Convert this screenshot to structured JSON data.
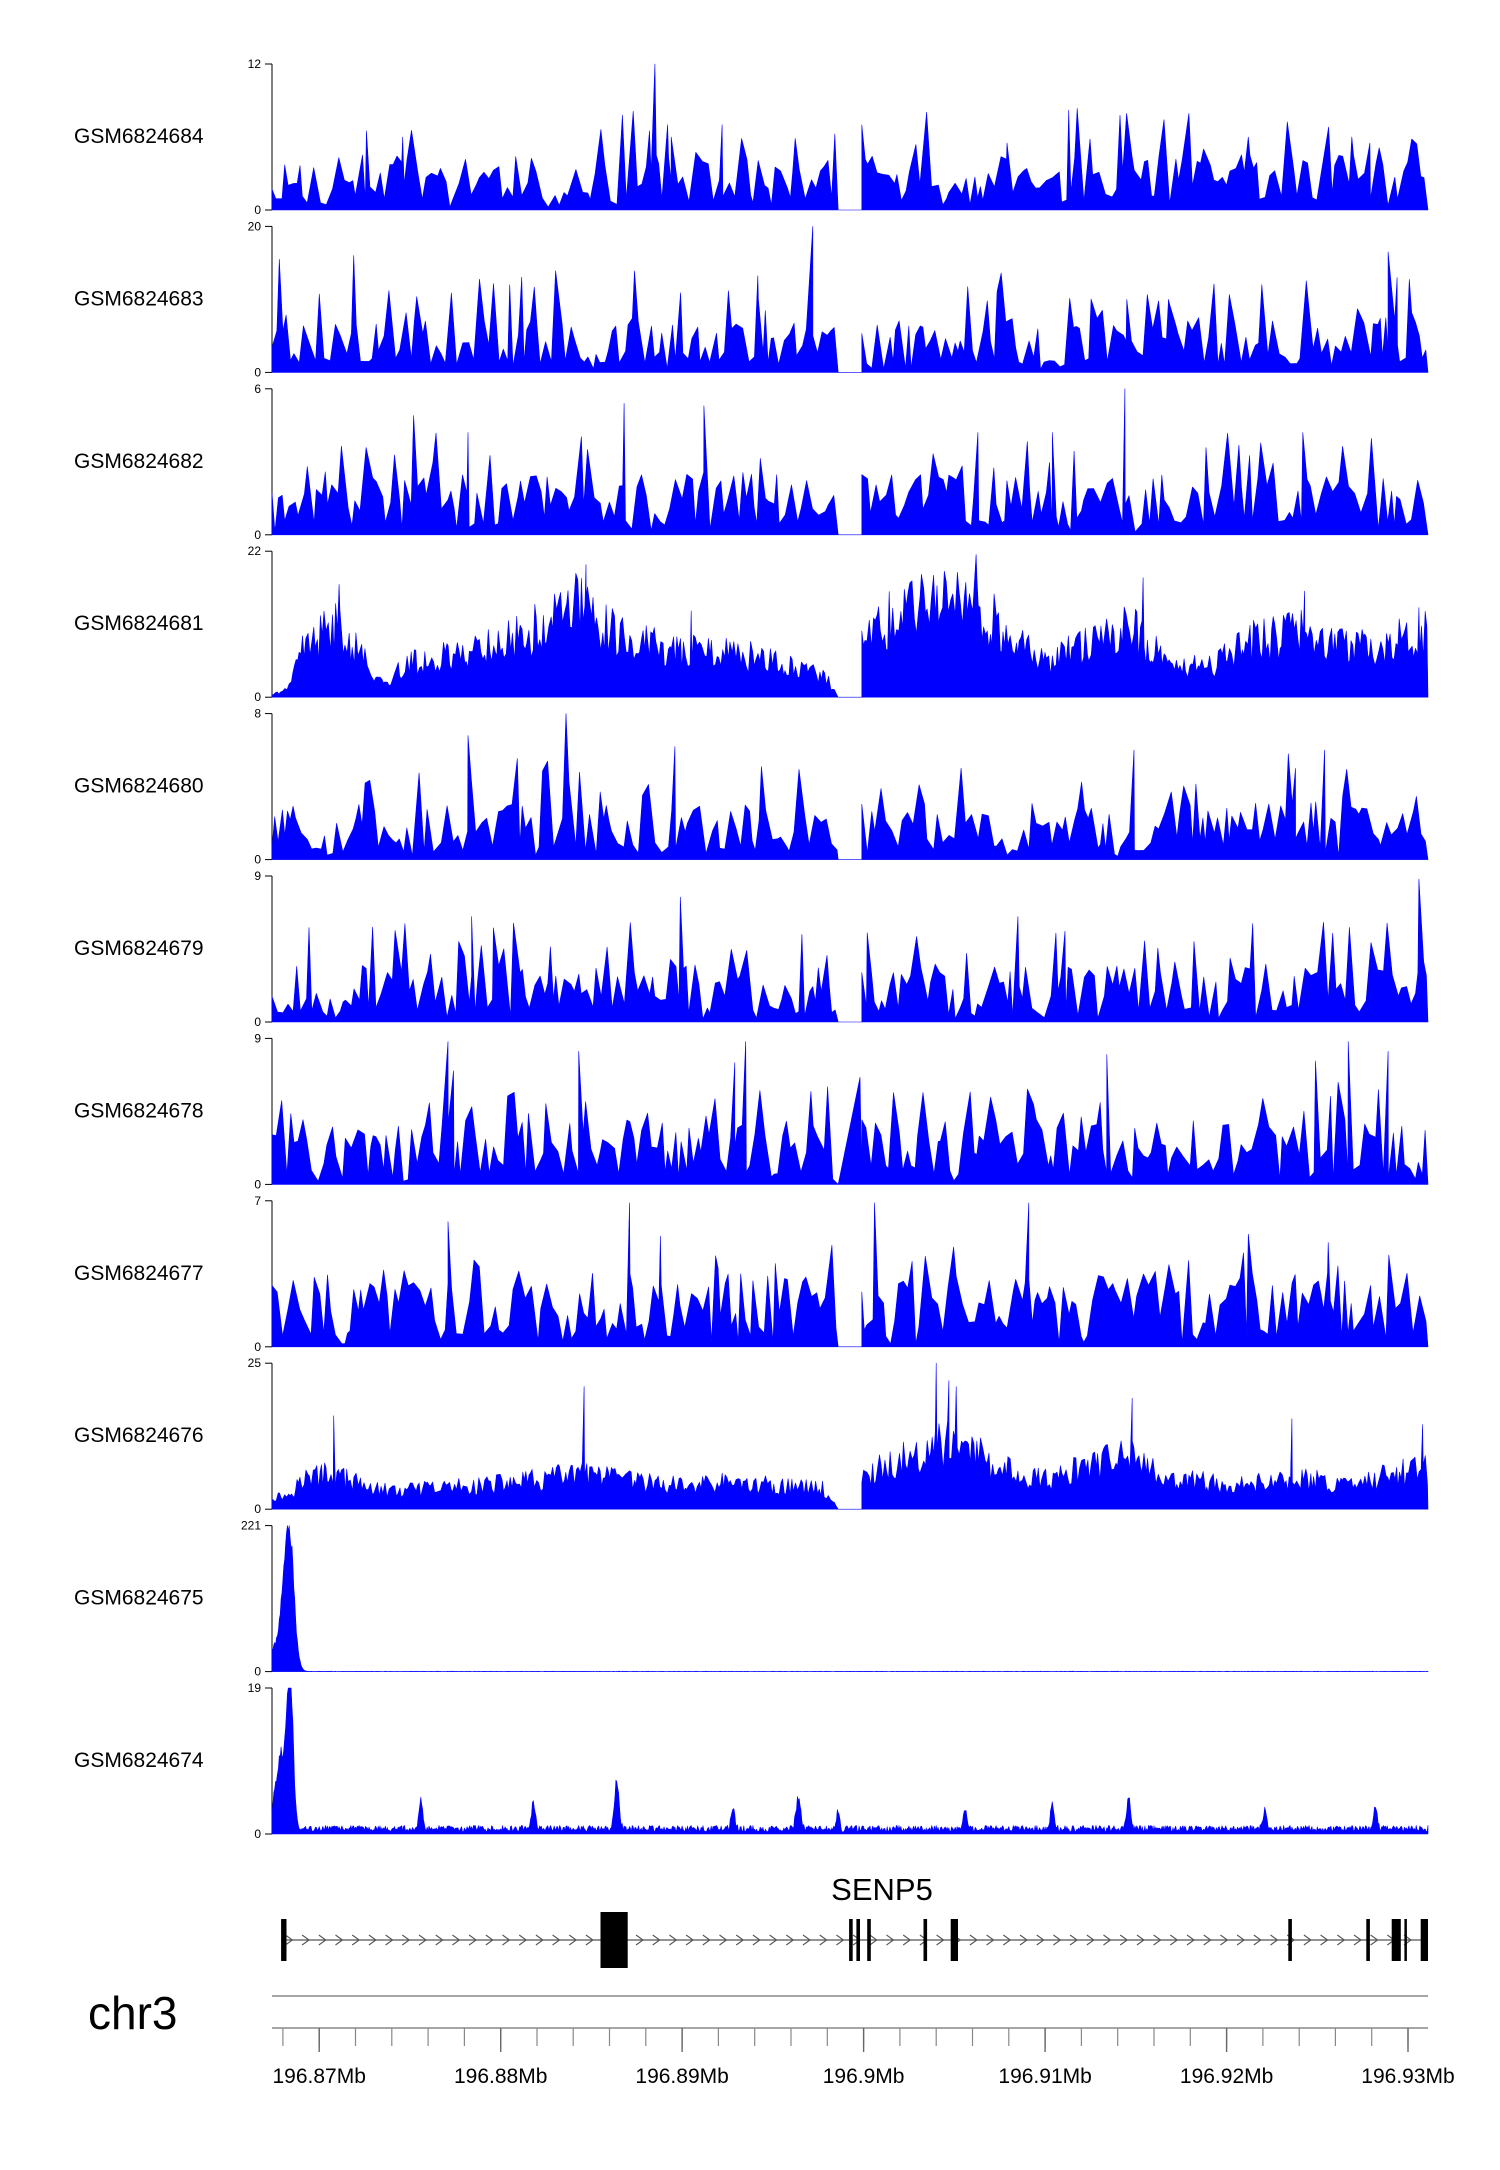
{
  "chart_data": {
    "type": "area",
    "chromosome": "chr3",
    "x_unit": "Mb",
    "xlim": [
      196.8674,
      196.9311
    ],
    "x_ticks": [
      196.87,
      196.88,
      196.89,
      196.9,
      196.91,
      196.92,
      196.93
    ],
    "x_tick_labels": [
      "196.87Mb",
      "196.88Mb",
      "196.89Mb",
      "196.9Mb",
      "196.91Mb",
      "196.92Mb",
      "196.93Mb"
    ],
    "minor_tick_step": 0.002,
    "color": "#0000FF",
    "tracks": [
      {
        "name": "GSM6824684",
        "ymax": 12,
        "ymin": 0,
        "ytick_labels": [
          "12",
          "0"
        ],
        "style": "spiky",
        "typical": 0.27,
        "seed": 11,
        "peaks": [
          [
            196.8885,
            12
          ],
          [
            196.8894,
            6
          ],
          [
            196.8726,
            6.5
          ],
          [
            196.8746,
            6
          ],
          [
            196.8892,
            7
          ],
          [
            196.8922,
            7
          ],
          [
            196.8882,
            6.5
          ],
          [
            196.9113,
            8.2
          ],
          [
            196.9079,
            5.5
          ],
          [
            196.9212,
            6
          ],
          [
            196.9269,
            6
          ],
          [
            196.9279,
            5.5
          ]
        ]
      },
      {
        "name": "GSM6824683",
        "ymax": 20,
        "ymin": 0,
        "ytick_labels": [
          "20",
          "0"
        ],
        "style": "spiky",
        "typical": 0.27,
        "seed": 23,
        "peaks": [
          [
            196.8678,
            15.5
          ],
          [
            196.8719,
            16
          ],
          [
            196.8805,
            12
          ],
          [
            196.8972,
            20
          ],
          [
            196.8942,
            10
          ],
          [
            196.9145,
            10
          ],
          [
            196.9168,
            10
          ],
          [
            196.9289,
            16.5
          ],
          [
            196.9294,
            13
          ]
        ]
      },
      {
        "name": "GSM6824682",
        "ymax": 6,
        "ymin": 0,
        "ytick_labels": [
          "6",
          "0"
        ],
        "style": "spiky",
        "typical": 0.3,
        "seed": 37,
        "peaks": [
          [
            196.8752,
            4.9
          ],
          [
            196.8868,
            5.4
          ],
          [
            196.8912,
            5.3
          ],
          [
            196.9063,
            4.2
          ],
          [
            196.9144,
            6
          ],
          [
            196.9104,
            4.2
          ],
          [
            196.9242,
            4.2
          ],
          [
            196.8782,
            4.2
          ]
        ]
      },
      {
        "name": "GSM6824681",
        "ymax": 22,
        "ymin": 0,
        "ytick_labels": [
          "22",
          "0"
        ],
        "style": "smooth",
        "seed": 41,
        "levels": [
          [
            196.8674,
            0.3
          ],
          [
            196.8684,
            1.5
          ],
          [
            196.869,
            7
          ],
          [
            196.8712,
            11
          ],
          [
            196.8724,
            6
          ],
          [
            196.8734,
            2
          ],
          [
            196.875,
            5
          ],
          [
            196.8768,
            6
          ],
          [
            196.8812,
            9
          ],
          [
            196.8842,
            14
          ],
          [
            196.8868,
            9
          ],
          [
            196.888,
            8
          ],
          [
            196.8898,
            7
          ],
          [
            196.894,
            6
          ],
          [
            196.8979,
            3
          ],
          [
            196.8986,
            0
          ],
          [
            196.9,
            8
          ],
          [
            196.9016,
            12
          ],
          [
            196.904,
            15
          ],
          [
            196.9066,
            13
          ],
          [
            196.9082,
            9
          ],
          [
            196.91,
            5
          ],
          [
            196.9146,
            11
          ],
          [
            196.916,
            7
          ],
          [
            196.9188,
            4
          ],
          [
            196.921,
            8
          ],
          [
            196.924,
            10
          ],
          [
            196.927,
            7
          ],
          [
            196.9311,
            10
          ]
        ],
        "peaks": [
          [
            196.8711,
            17
          ],
          [
            196.8847,
            20
          ],
          [
            196.8905,
            13
          ],
          [
            196.9062,
            21.5
          ],
          [
            196.9154,
            18
          ],
          [
            196.9243,
            16
          ],
          [
            196.9306,
            13.5
          ]
        ]
      },
      {
        "name": "GSM6824680",
        "ymax": 8,
        "ymin": 0,
        "ytick_labels": [
          "8",
          "0"
        ],
        "style": "spiky",
        "typical": 0.28,
        "seed": 53,
        "peaks": [
          [
            196.8782,
            6.8
          ],
          [
            196.8836,
            8
          ],
          [
            196.8896,
            6.2
          ],
          [
            196.9149,
            6
          ],
          [
            196.9234,
            5.8
          ],
          [
            196.9254,
            6
          ],
          [
            196.9238,
            5
          ]
        ]
      },
      {
        "name": "GSM6824679",
        "ymax": 9,
        "ymin": 0,
        "ytick_labels": [
          "9",
          "0"
        ],
        "style": "spiky",
        "typical": 0.28,
        "seed": 67,
        "peaks": [
          [
            196.8784,
            6.5
          ],
          [
            196.8796,
            5.8
          ],
          [
            196.8899,
            7.7
          ],
          [
            196.8966,
            5.4
          ],
          [
            196.9002,
            5.5
          ],
          [
            196.9085,
            6.5
          ],
          [
            196.9111,
            5.6
          ],
          [
            196.9306,
            8.8
          ]
        ]
      },
      {
        "name": "GSM6824678",
        "ymax": 9,
        "ymin": 0,
        "ytick_labels": [
          "9",
          "0"
        ],
        "style": "spiky",
        "typical": 0.32,
        "seed": 71,
        "peaks": [
          [
            196.8771,
            8.8
          ],
          [
            196.8774,
            7
          ],
          [
            196.8843,
            8.2
          ],
          [
            196.8935,
            8.8
          ],
          [
            196.8929,
            7.5
          ],
          [
            196.8998,
            6.6
          ],
          [
            196.9134,
            8
          ],
          [
            196.9249,
            7.6
          ],
          [
            196.9267,
            8.8
          ],
          [
            196.9289,
            8.2
          ]
        ]
      },
      {
        "name": "GSM6824677",
        "ymax": 7,
        "ymin": 0,
        "ytick_labels": [
          "7",
          "0"
        ],
        "style": "spiky",
        "typical": 0.36,
        "seed": 83,
        "peaks": [
          [
            196.8771,
            6
          ],
          [
            196.8871,
            6.9
          ],
          [
            196.8888,
            5.3
          ],
          [
            196.9006,
            6.9
          ],
          [
            196.9091,
            6.9
          ],
          [
            196.9212,
            5.4
          ],
          [
            196.9256,
            5
          ]
        ]
      },
      {
        "name": "GSM6824676",
        "ymax": 25,
        "ymin": 0,
        "ytick_labels": [
          "25",
          "0"
        ],
        "style": "smooth",
        "seed": 97,
        "levels": [
          [
            196.8674,
            2
          ],
          [
            196.8684,
            2.5
          ],
          [
            196.869,
            5
          ],
          [
            196.8706,
            6
          ],
          [
            196.8724,
            4
          ],
          [
            196.874,
            3
          ],
          [
            196.8782,
            4
          ],
          [
            196.8808,
            4.5
          ],
          [
            196.8842,
            6
          ],
          [
            196.8866,
            5
          ],
          [
            196.8898,
            4
          ],
          [
            196.8924,
            4.5
          ],
          [
            196.8978,
            3.5
          ],
          [
            196.8986,
            0
          ],
          [
            196.8994,
            4
          ],
          [
            196.9016,
            8
          ],
          [
            196.9034,
            10
          ],
          [
            196.905,
            11
          ],
          [
            196.9078,
            7
          ],
          [
            196.91,
            5
          ],
          [
            196.9146,
            9
          ],
          [
            196.9162,
            6
          ],
          [
            196.92,
            4
          ],
          [
            196.924,
            5
          ],
          [
            196.927,
            4.5
          ],
          [
            196.9311,
            7
          ]
        ],
        "peaks": [
          [
            196.8708,
            16
          ],
          [
            196.8846,
            21
          ],
          [
            196.904,
            25
          ],
          [
            196.9047,
            22
          ],
          [
            196.9051,
            21
          ],
          [
            196.9148,
            19
          ],
          [
            196.9236,
            15.5
          ],
          [
            196.9308,
            14.5
          ]
        ]
      },
      {
        "name": "GSM6824675",
        "ymax": 221,
        "ymin": 0,
        "ytick_labels": [
          "221",
          "0"
        ],
        "style": "bump",
        "seed": 101,
        "levels": [
          [
            196.8674,
            0.4
          ],
          [
            196.9311,
            0.4
          ]
        ],
        "bumps": [
          [
            196.8683,
            221,
            0.00028
          ],
          [
            196.8676,
            35,
            0.0004
          ]
        ]
      },
      {
        "name": "GSM6824674",
        "ymax": 19,
        "ymin": 0,
        "ytick_labels": [
          "19",
          "0"
        ],
        "style": "bump",
        "seed": 113,
        "levels": [
          [
            196.8674,
            0.8
          ],
          [
            196.8986,
            0.8
          ],
          [
            196.8988,
            0
          ],
          [
            196.899,
            0.8
          ],
          [
            196.9311,
            0.8
          ]
        ],
        "bumps": [
          [
            196.8684,
            19,
            0.00016
          ],
          [
            196.8679,
            10,
            0.0003
          ],
          [
            196.8864,
            6,
            0.00012
          ],
          [
            196.8964,
            4.2,
            0.00012
          ],
          [
            196.8756,
            3.5,
            0.0001
          ],
          [
            196.8818,
            3.5,
            0.0001
          ],
          [
            196.9104,
            3.2,
            0.0001
          ],
          [
            196.9146,
            4.2,
            0.0001
          ],
          [
            196.8928,
            2.5,
            0.0001
          ],
          [
            196.8986,
            2.5,
            0.0001
          ],
          [
            196.9056,
            2.5,
            0.0001
          ],
          [
            196.9221,
            2.5,
            0.0001
          ],
          [
            196.9282,
            2.8,
            0.0001
          ]
        ]
      }
    ],
    "gene": {
      "name": "SENP5",
      "strand": "+",
      "start": 196.8679,
      "end": 196.9311,
      "exons": [
        [
          196.8679,
          196.8682
        ],
        [
          196.8855,
          196.887
        ],
        [
          196.8992,
          196.8994
        ],
        [
          196.8996,
          196.8998
        ],
        [
          196.9002,
          196.9004
        ],
        [
          196.9033,
          196.9035
        ],
        [
          196.9048,
          196.9052
        ],
        [
          196.9234,
          196.9236
        ],
        [
          196.9277,
          196.9279
        ],
        [
          196.9291,
          196.9296
        ],
        [
          196.9298,
          196.9299
        ],
        [
          196.9307,
          196.9311
        ]
      ]
    }
  }
}
